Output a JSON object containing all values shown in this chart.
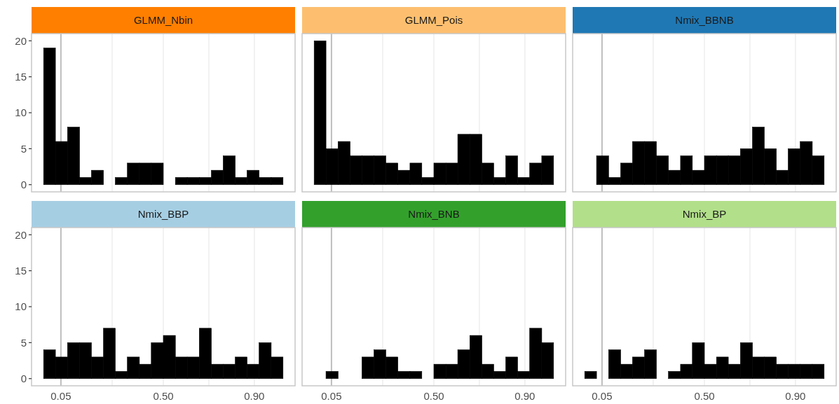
{
  "chart_data": [
    {
      "type": "histogram",
      "title": "GLMM_Nbin",
      "color": "#000000",
      "bins": [
        -0.026,
        0.026,
        0.079,
        0.132,
        0.184,
        0.237,
        0.289,
        0.342,
        0.395,
        0.447,
        0.5,
        0.553,
        0.605,
        0.658,
        0.711,
        0.763,
        0.816,
        0.868,
        0.921,
        0.974,
        1.026
      ],
      "values": [
        19,
        6,
        8,
        1,
        2,
        0,
        1,
        3,
        3,
        3,
        0,
        1,
        1,
        1,
        2,
        4,
        1,
        2,
        1,
        1
      ],
      "xlim": [
        -0.079,
        1.079
      ],
      "xticks": [
        0.05,
        {
          "value": 0.275,
          "label": null
        },
        0.5,
        {
          "value": 0.7,
          "label": null
        },
        0.9
      ],
      "ylim": [
        -1,
        21
      ],
      "yticks": [
        0,
        5,
        10,
        15,
        20
      ],
      "grid": "x",
      "tick_labels": "y",
      "ref_lines": [
        {
          "axis": "x",
          "value": 0.05,
          "color": "#bebebe"
        }
      ]
    },
    {
      "type": "histogram",
      "title": "GLMM_Pois",
      "color": "#000000",
      "bins": [
        -0.026,
        0.026,
        0.079,
        0.132,
        0.184,
        0.237,
        0.289,
        0.342,
        0.395,
        0.447,
        0.5,
        0.553,
        0.605,
        0.658,
        0.711,
        0.763,
        0.816,
        0.868,
        0.921,
        0.974,
        1.026
      ],
      "values": [
        20,
        5,
        6,
        4,
        4,
        4,
        3,
        2,
        3,
        1,
        3,
        3,
        7,
        7,
        3,
        1,
        4,
        1,
        3,
        4
      ],
      "xlim": [
        -0.079,
        1.079
      ],
      "xticks": [
        0.05,
        {
          "value": 0.275,
          "label": null
        },
        0.5,
        {
          "value": 0.7,
          "label": null
        },
        0.9
      ],
      "ylim": [
        -1,
        21
      ],
      "grid": "x",
      "tick_labels": false,
      "ref_lines": [
        {
          "axis": "x",
          "value": 0.05,
          "color": "#bebebe"
        }
      ]
    },
    {
      "type": "histogram",
      "title": "Nmix_BBNB",
      "color": "#000000",
      "bins": [
        -0.026,
        0.026,
        0.079,
        0.132,
        0.184,
        0.237,
        0.289,
        0.342,
        0.395,
        0.447,
        0.5,
        0.553,
        0.605,
        0.658,
        0.711,
        0.763,
        0.816,
        0.868,
        0.921,
        0.974,
        1.026
      ],
      "values": [
        0,
        4,
        1,
        3,
        6,
        6,
        4,
        2,
        4,
        2,
        4,
        4,
        4,
        5,
        8,
        5,
        2,
        5,
        6,
        4
      ],
      "xlim": [
        -0.079,
        1.079
      ],
      "xticks": [
        0.05,
        {
          "value": 0.275,
          "label": null
        },
        0.5,
        {
          "value": 0.7,
          "label": null
        },
        0.9
      ],
      "ylim": [
        -1,
        21
      ],
      "grid": "x",
      "tick_labels": false,
      "ref_lines": [
        {
          "axis": "x",
          "value": 0.05,
          "color": "#bebebe"
        }
      ]
    },
    {
      "type": "histogram",
      "title": "Nmix_BBP",
      "color": "#000000",
      "bins": [
        -0.026,
        0.026,
        0.079,
        0.132,
        0.184,
        0.237,
        0.289,
        0.342,
        0.395,
        0.447,
        0.5,
        0.553,
        0.605,
        0.658,
        0.711,
        0.763,
        0.816,
        0.868,
        0.921,
        0.974,
        1.026
      ],
      "values": [
        4,
        3,
        5,
        5,
        3,
        7,
        1,
        3,
        2,
        5,
        6,
        3,
        3,
        7,
        2,
        2,
        3,
        2,
        5,
        3
      ],
      "xlim": [
        -0.079,
        1.079
      ],
      "xticks": [
        {
          "value": 0.05,
          "label": "0.05"
        },
        {
          "value": 0.275,
          "label": null
        },
        {
          "value": 0.5,
          "label": "0.50"
        },
        {
          "value": 0.7,
          "label": null
        },
        {
          "value": 0.9,
          "label": "0.90"
        }
      ],
      "ylim": [
        -1,
        21
      ],
      "yticks": [
        0,
        5,
        10,
        15,
        20
      ],
      "grid": "x",
      "ref_lines": [
        {
          "axis": "x",
          "value": 0.05,
          "color": "#bebebe"
        }
      ]
    },
    {
      "type": "histogram",
      "title": "Nmix_BNB",
      "color": "#000000",
      "bins": [
        -0.026,
        0.026,
        0.079,
        0.132,
        0.184,
        0.237,
        0.289,
        0.342,
        0.395,
        0.447,
        0.5,
        0.553,
        0.605,
        0.658,
        0.711,
        0.763,
        0.816,
        0.868,
        0.921,
        0.974,
        1.026
      ],
      "values": [
        0,
        1,
        0,
        0,
        3,
        4,
        3,
        1,
        1,
        0,
        2,
        2,
        4,
        6,
        2,
        1,
        3,
        1,
        7,
        5
      ],
      "xlim": [
        -0.079,
        1.079
      ],
      "xticks": [
        {
          "value": 0.05,
          "label": "0.05"
        },
        {
          "value": 0.275,
          "label": null
        },
        {
          "value": 0.5,
          "label": "0.50"
        },
        {
          "value": 0.7,
          "label": null
        },
        {
          "value": 0.9,
          "label": "0.90"
        }
      ],
      "ylim": [
        -1,
        21
      ],
      "grid": "x",
      "tick_labels": "x",
      "ref_lines": [
        {
          "axis": "x",
          "value": 0.05,
          "color": "#bebebe"
        }
      ]
    },
    {
      "type": "histogram",
      "title": "Nmix_BP",
      "color": "#000000",
      "bins": [
        -0.026,
        0.026,
        0.079,
        0.132,
        0.184,
        0.237,
        0.289,
        0.342,
        0.395,
        0.447,
        0.5,
        0.553,
        0.605,
        0.658,
        0.711,
        0.763,
        0.816,
        0.868,
        0.921,
        0.974,
        1.026
      ],
      "values": [
        1,
        0,
        4,
        2,
        3,
        4,
        0,
        1,
        2,
        5,
        2,
        3,
        2,
        5,
        3,
        3,
        2,
        2,
        2,
        2
      ],
      "xlim": [
        -0.079,
        1.079
      ],
      "xticks": [
        {
          "value": 0.05,
          "label": "0.05"
        },
        {
          "value": 0.275,
          "label": null
        },
        {
          "value": 0.5,
          "label": "0.50"
        },
        {
          "value": 0.7,
          "label": null
        },
        {
          "value": 0.9,
          "label": "0.90"
        }
      ],
      "ylim": [
        -1,
        21
      ],
      "grid": "x",
      "tick_labels": "x",
      "ref_lines": [
        {
          "axis": "x",
          "value": 0.05,
          "color": "#bebebe"
        }
      ]
    }
  ]
}
